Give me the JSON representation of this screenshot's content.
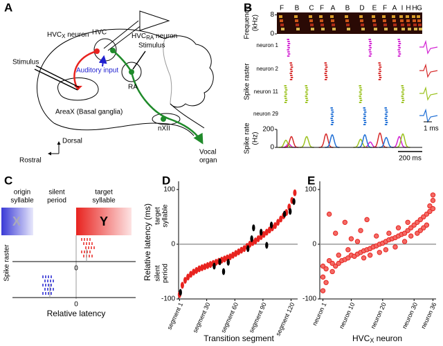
{
  "panels": {
    "A": {
      "label": "A",
      "hvcx_neuron": {
        "name": "HVC",
        "sub": "X",
        "tail": " neuron"
      },
      "hvc": "HVC",
      "hvcra_neuron": {
        "name": "HVC",
        "sub": "RA",
        "tail": " neuron"
      },
      "stimulus_left": "Stimulus",
      "stimulus_right": "Stimulus",
      "auditory_input": "Auditory input",
      "ra": "RA",
      "areax": "AreaX (Basal ganglia)",
      "nxii": "nXII",
      "vocal_organ": [
        "Vocal",
        "organ"
      ],
      "dorsal": "Dorsal",
      "rostral": "Rostral"
    },
    "B": {
      "label": "B",
      "syllables": [
        "F",
        "B",
        "C",
        "F",
        "A",
        "B",
        "D",
        "E",
        "F",
        "A",
        "I",
        "H",
        "H",
        "G"
      ],
      "frequency_label": [
        "Frequency",
        "(kHz)"
      ],
      "frequency_ylim": [
        0,
        9
      ],
      "frequency_ticks": [
        0,
        8
      ],
      "raster_label": "Spike raster",
      "rate_label": [
        "Spike rate",
        "(Hz)"
      ],
      "xlim": [
        0,
        1200
      ],
      "rate_ylim": [
        0,
        200
      ],
      "rate_yticks": [
        0,
        200
      ],
      "neurons": [
        {
          "name": "neuron 1",
          "color": "#d21fd2",
          "burst_ms": [
            97,
            771,
            1011
          ],
          "peak_hz": [
            40,
            60,
            120
          ]
        },
        {
          "name": "neuron 2",
          "color": "#d62828",
          "burst_ms": [
            120,
            406,
            851
          ],
          "peak_hz": [
            120,
            150,
            160
          ]
        },
        {
          "name": "neuron 11",
          "color": "#9bc21e",
          "burst_ms": [
            74,
            246,
            691,
            1040
          ],
          "peak_hz": [
            80,
            120,
            90,
            150
          ]
        },
        {
          "name": "neuron 29",
          "color": "#1f6fd6",
          "burst_ms": [
            457,
            726,
            903
          ],
          "peak_hz": [
            140,
            140,
            110
          ]
        }
      ],
      "time_scale": {
        "value": 200,
        "label": "200 ms"
      },
      "waveform_scale": "1 ms"
    },
    "C": {
      "label": "C",
      "origin": [
        "origin",
        "syllable"
      ],
      "silent": [
        "silent",
        "period"
      ],
      "target": [
        "target",
        "syllable"
      ],
      "origin_letter": "X",
      "target_letter": "Y",
      "raster_label": "Spike raster",
      "zero_upper": 0,
      "zero_lower": 0,
      "xlabel": "Relative latency"
    },
    "D": {
      "label": "D",
      "type": "scatter",
      "ylabel": "Relative latency (ms)",
      "upper_label": [
        "target",
        "syllable"
      ],
      "lower_label": [
        "silent",
        "period"
      ],
      "xlabel": "Transition segment",
      "xlim": [
        0,
        127
      ],
      "ylim": [
        -100,
        115
      ],
      "yticks": [
        -100,
        0,
        100
      ],
      "xticks": [
        {
          "value": 1,
          "label": "segment 1"
        },
        {
          "value": 30,
          "label": "segment 30"
        },
        {
          "value": 60,
          "label": "segment 60"
        },
        {
          "value": 90,
          "label": "segment 90"
        },
        {
          "value": 120,
          "label": "segment 120"
        }
      ],
      "series": [
        {
          "color": "#e8231f",
          "x": [
            1,
            4,
            7,
            10,
            13,
            16,
            19,
            22,
            25,
            28,
            31,
            34,
            37,
            40,
            43,
            46,
            49,
            52,
            55,
            58,
            61,
            64,
            67,
            70,
            73,
            76,
            79,
            82,
            85,
            88,
            91,
            94,
            97,
            100,
            103,
            106,
            109,
            112,
            115,
            118,
            121,
            124
          ],
          "values": [
            -92,
            -75,
            -66,
            -60,
            -55,
            -51,
            -48,
            -45,
            -43,
            -41,
            -39,
            -37,
            -35,
            -33,
            -31,
            -29,
            -27,
            -25,
            -23,
            -20,
            -17,
            -14,
            -11,
            -8,
            -4,
            0,
            3,
            6,
            10,
            14,
            18,
            22,
            26,
            30,
            34,
            40,
            46,
            52,
            58,
            68,
            80,
            94
          ]
        },
        {
          "color": "#000000",
          "x": [
            2,
            38,
            44,
            48,
            53,
            74,
            78,
            80,
            88,
            94,
            99,
            113,
            119,
            123
          ],
          "values": [
            -88,
            -40,
            -32,
            -50,
            -33,
            -8,
            10,
            30,
            22,
            -2,
            35,
            55,
            60,
            78
          ]
        }
      ]
    },
    "E": {
      "label": "E",
      "type": "scatter",
      "xlabel": {
        "name": "HVC",
        "sub": "X",
        "tail": " neuron"
      },
      "xlim": [
        0,
        37
      ],
      "ylim": [
        -100,
        115
      ],
      "yticks": [
        -100,
        0,
        100
      ],
      "xticks": [
        {
          "value": 1,
          "label": "neuron 1"
        },
        {
          "value": 10,
          "label": "neuron 10"
        },
        {
          "value": 20,
          "label": "neuron 20"
        },
        {
          "value": 30,
          "label": "neuron 30"
        },
        {
          "value": 36,
          "label": "neuron 36"
        }
      ],
      "series": [
        {
          "color": "#e8231f",
          "x": [
            1,
            1,
            1,
            2,
            2,
            3,
            3,
            4,
            4,
            5,
            5,
            6,
            6,
            7,
            8,
            8,
            9,
            9,
            10,
            10,
            11,
            12,
            12,
            13,
            13,
            14,
            14,
            15,
            15,
            16,
            16,
            17,
            18,
            18,
            19,
            19,
            20,
            21,
            21,
            22,
            22,
            23,
            24,
            24,
            25,
            25,
            26,
            27,
            27,
            28,
            28,
            29,
            29,
            30,
            31,
            31,
            32,
            32,
            33,
            33,
            34,
            34,
            35,
            35,
            36,
            36,
            36
          ],
          "values": [
            -85,
            -60,
            -40,
            -70,
            -45,
            -30,
            55,
            -50,
            -35,
            -40,
            20,
            -35,
            -20,
            -30,
            -28,
            40,
            -25,
            -10,
            -20,
            10,
            -22,
            -18,
            5,
            -15,
            25,
            -12,
            -25,
            -10,
            45,
            -8,
            -20,
            -5,
            -3,
            15,
            0,
            -15,
            2,
            5,
            -10,
            8,
            20,
            10,
            12,
            -5,
            15,
            30,
            18,
            20,
            5,
            25,
            40,
            30,
            15,
            35,
            40,
            20,
            45,
            25,
            50,
            30,
            55,
            35,
            60,
            70,
            65,
            80,
            90
          ]
        }
      ]
    }
  }
}
